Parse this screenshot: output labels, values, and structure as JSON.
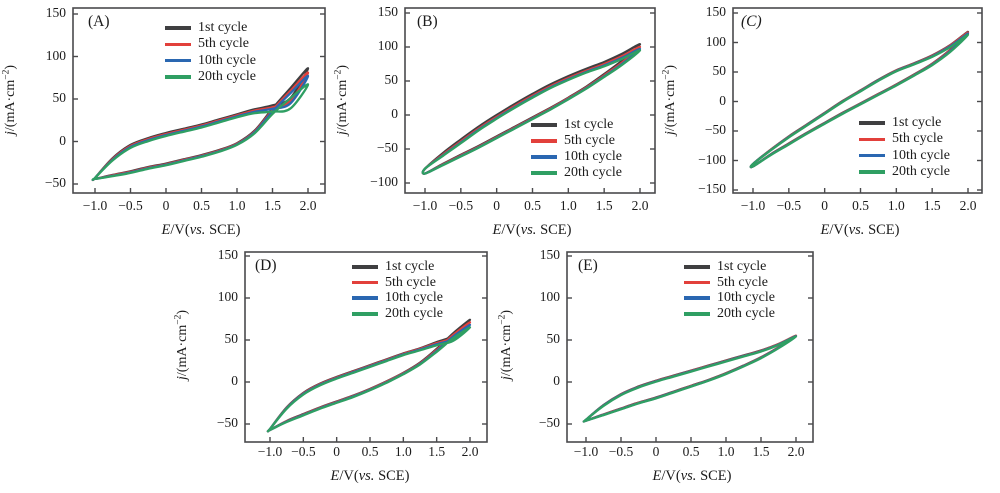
{
  "figure": {
    "background": "#ffffff",
    "frame_color": "#4a4a4c",
    "text_color": "#1b1b1b",
    "cycles": [
      {
        "label": "1st cycle",
        "color": "#3f3f41"
      },
      {
        "label": "5th cycle",
        "color": "#e2403b"
      },
      {
        "label": "10th cycle",
        "color": "#2a67b1"
      },
      {
        "label": "20th cycle",
        "color": "#2f9f63"
      }
    ],
    "xlabel": "E/V(vs. SCE)",
    "ylabel": "j/(mA·cm⁻²)",
    "xlabel_parts": [
      {
        "t": "E",
        "i": true
      },
      {
        "t": "/V(",
        "i": false
      },
      {
        "t": "vs.",
        "i": true
      },
      {
        "t": " SCE)",
        "i": false
      }
    ],
    "ylabel_parts": [
      {
        "t": "j",
        "i": true
      },
      {
        "t": "/(mA·cm",
        "i": false
      },
      {
        "t": "−2",
        "sup": true
      },
      {
        "t": ")",
        "i": false
      }
    ]
  },
  "chart_data": [
    {
      "id": "A",
      "type": "line",
      "panel_label": "(A)",
      "panel_label_italic": false,
      "xlabel": "E/V(vs. SCE)",
      "ylabel": "j/(mA·cm⁻²)",
      "xlim": [
        -1.0,
        2.0
      ],
      "ylim": [
        -59,
        155
      ],
      "xticks": [
        -1.0,
        -0.5,
        0,
        0.5,
        1.0,
        1.5,
        2.0
      ],
      "xtick_labels": [
        "−1.0",
        "−0.5",
        "0",
        "0.5",
        "1.0",
        "1.5",
        "2.0"
      ],
      "yticks": [
        150,
        100,
        50,
        0,
        -50
      ],
      "ytick_labels": [
        "150",
        "100",
        "50",
        "0",
        "−50"
      ],
      "legend_position": "top-left",
      "sweep_x": [
        -1.0,
        -0.75,
        -0.5,
        -0.25,
        0,
        0.25,
        0.5,
        0.75,
        1.0,
        1.25,
        1.5,
        1.75,
        2.0
      ],
      "forward_sweep": [
        -44,
        -40,
        -36,
        -31,
        -27,
        -22,
        -17,
        -11,
        -3,
        12,
        38,
        62,
        86
      ],
      "return_sweep": [
        -43,
        -21,
        -6,
        2,
        8,
        13,
        18,
        24,
        30,
        36,
        41,
        50,
        86
      ],
      "cycle_end_values": [
        86,
        81,
        77,
        67
      ],
      "forward_cycle_shifts": [
        1,
        0.3,
        -0.4,
        -1
      ],
      "return_cycle_shifts": [
        2,
        0.8,
        -0.4,
        -1.5
      ]
    },
    {
      "id": "B",
      "type": "line",
      "panel_label": "(B)",
      "panel_label_italic": false,
      "xlabel": "E/V(vs. SCE)",
      "ylabel": "j/(mA·cm⁻²)",
      "xlim": [
        -1.0,
        2.0
      ],
      "ylim": [
        -115,
        155
      ],
      "xticks": [
        -1.0,
        -0.5,
        0,
        0.5,
        1.0,
        1.5,
        2.0
      ],
      "xtick_labels": [
        "−1.0",
        "−0.5",
        "0",
        "0.5",
        "1.0",
        "1.5",
        "2.0"
      ],
      "yticks": [
        150,
        100,
        50,
        0,
        -50,
        -100
      ],
      "ytick_labels": [
        "150",
        "100",
        "50",
        "0",
        "−50",
        "−100"
      ],
      "legend_position": "bottom-right",
      "sweep_x": [
        -1.0,
        -0.75,
        -0.5,
        -0.25,
        0,
        0.25,
        0.5,
        0.75,
        1.0,
        1.25,
        1.5,
        1.75,
        2.0
      ],
      "forward_sweep": [
        -86,
        -73,
        -60,
        -47,
        -33,
        -19,
        -5,
        9,
        24,
        40,
        58,
        77,
        100
      ],
      "return_sweep": [
        -79,
        -59,
        -40,
        -21,
        -4,
        12,
        27,
        41,
        53,
        64,
        74,
        86,
        100
      ],
      "cycle_end_values": [
        104,
        100,
        97,
        95
      ],
      "forward_cycle_shifts": [
        1.5,
        0.5,
        -0.5,
        -1
      ],
      "return_cycle_shifts": [
        4,
        1.2,
        -0.5,
        -1.5
      ]
    },
    {
      "id": "C",
      "type": "line",
      "panel_label": "(C)",
      "panel_label_italic": true,
      "xlabel": "E/V(vs. SCE)",
      "ylabel": "j/(mA·cm⁻²)",
      "xlim": [
        -1.0,
        2.0
      ],
      "ylim": [
        -155,
        155
      ],
      "xticks": [
        -1.0,
        -0.5,
        0,
        0.5,
        1.0,
        1.5,
        2.0
      ],
      "xtick_labels": [
        "−1.0",
        "−0.5",
        "0",
        "0.5",
        "1.0",
        "1.5",
        "2.0"
      ],
      "yticks": [
        150,
        100,
        50,
        0,
        -50,
        -100,
        -150
      ],
      "ytick_labels": [
        "150",
        "100",
        "50",
        "0",
        "−50",
        "−100",
        "−150"
      ],
      "legend_position": "bottom-right",
      "sweep_x": [
        -1.0,
        -0.75,
        -0.5,
        -0.25,
        0,
        0.25,
        0.5,
        0.75,
        1.0,
        1.25,
        1.5,
        1.75,
        2.0
      ],
      "forward_sweep": [
        -110,
        -90,
        -72,
        -54,
        -37,
        -20,
        -4,
        12,
        28,
        45,
        63,
        86,
        116
      ],
      "return_sweep": [
        -106,
        -82,
        -60,
        -40,
        -20,
        0,
        18,
        36,
        52,
        64,
        77,
        94,
        116
      ],
      "cycle_end_values": [
        118,
        117,
        115,
        113
      ],
      "forward_cycle_shifts": [
        0.8,
        0.3,
        -0.3,
        -0.8
      ],
      "return_cycle_shifts": [
        0.8,
        0.3,
        -0.3,
        -0.8
      ]
    },
    {
      "id": "D",
      "type": "line",
      "panel_label": "(D)",
      "panel_label_italic": false,
      "xlabel": "E/V(vs. SCE)",
      "ylabel": "j/(mA·cm⁻²)",
      "xlim": [
        -1.0,
        2.0
      ],
      "ylim": [
        -70,
        155
      ],
      "xticks": [
        -1.0,
        -0.5,
        0,
        0.5,
        1.0,
        1.5,
        2.0
      ],
      "xtick_labels": [
        "−1.0",
        "−0.5",
        "0",
        "0.5",
        "1.0",
        "1.5",
        "2.0"
      ],
      "yticks": [
        150,
        100,
        50,
        0,
        -50
      ],
      "ytick_labels": [
        "150",
        "100",
        "50",
        "0",
        "−50"
      ],
      "legend_position": "top-right",
      "sweep_x": [
        -1.0,
        -0.75,
        -0.5,
        -0.25,
        0,
        0.25,
        0.5,
        0.75,
        1.0,
        1.25,
        1.5,
        1.75,
        2.0
      ],
      "forward_sweep": [
        -57,
        -47,
        -39,
        -31,
        -24,
        -17,
        -9,
        0,
        10,
        22,
        38,
        56,
        71
      ],
      "return_sweep": [
        -56,
        -31,
        -14,
        -3,
        5,
        12,
        19,
        26,
        33,
        39,
        46,
        53,
        71
      ],
      "cycle_end_values": [
        74,
        71,
        68,
        65
      ],
      "forward_cycle_shifts": [
        0.8,
        0.3,
        -0.3,
        -0.8
      ],
      "return_cycle_shifts": [
        1,
        0.4,
        -0.3,
        -1
      ]
    },
    {
      "id": "E",
      "type": "line",
      "panel_label": "(E)",
      "panel_label_italic": false,
      "xlabel": "E/V(vs. SCE)",
      "ylabel": "j/(mA·cm⁻²)",
      "xlim": [
        -1.0,
        2.0
      ],
      "ylim": [
        -70,
        155
      ],
      "xticks": [
        -1.0,
        -0.5,
        0,
        0.5,
        1.0,
        1.5,
        2.0
      ],
      "xtick_labels": [
        "−1.0",
        "−0.5",
        "0",
        "0.5",
        "1.0",
        "1.5",
        "2.0"
      ],
      "yticks": [
        150,
        100,
        50,
        0,
        -50
      ],
      "ytick_labels": [
        "150",
        "100",
        "50",
        "0",
        "−50"
      ],
      "legend_position": "top-right",
      "sweep_x": [
        -1.0,
        -0.75,
        -0.5,
        -0.25,
        0,
        0.25,
        0.5,
        0.75,
        1.0,
        1.25,
        1.5,
        1.75,
        2.0
      ],
      "forward_sweep": [
        -46,
        -39,
        -32,
        -25,
        -19,
        -12,
        -5,
        2,
        10,
        19,
        29,
        41,
        55
      ],
      "return_sweep": [
        -45,
        -28,
        -15,
        -6,
        1,
        7,
        13,
        19,
        25,
        31,
        37,
        45,
        55
      ],
      "cycle_end_values": [
        55,
        55,
        54.5,
        54
      ],
      "forward_cycle_shifts": [
        0.5,
        0.2,
        -0.2,
        -0.5
      ],
      "return_cycle_shifts": [
        0.6,
        0.2,
        -0.2,
        -0.6
      ]
    }
  ]
}
